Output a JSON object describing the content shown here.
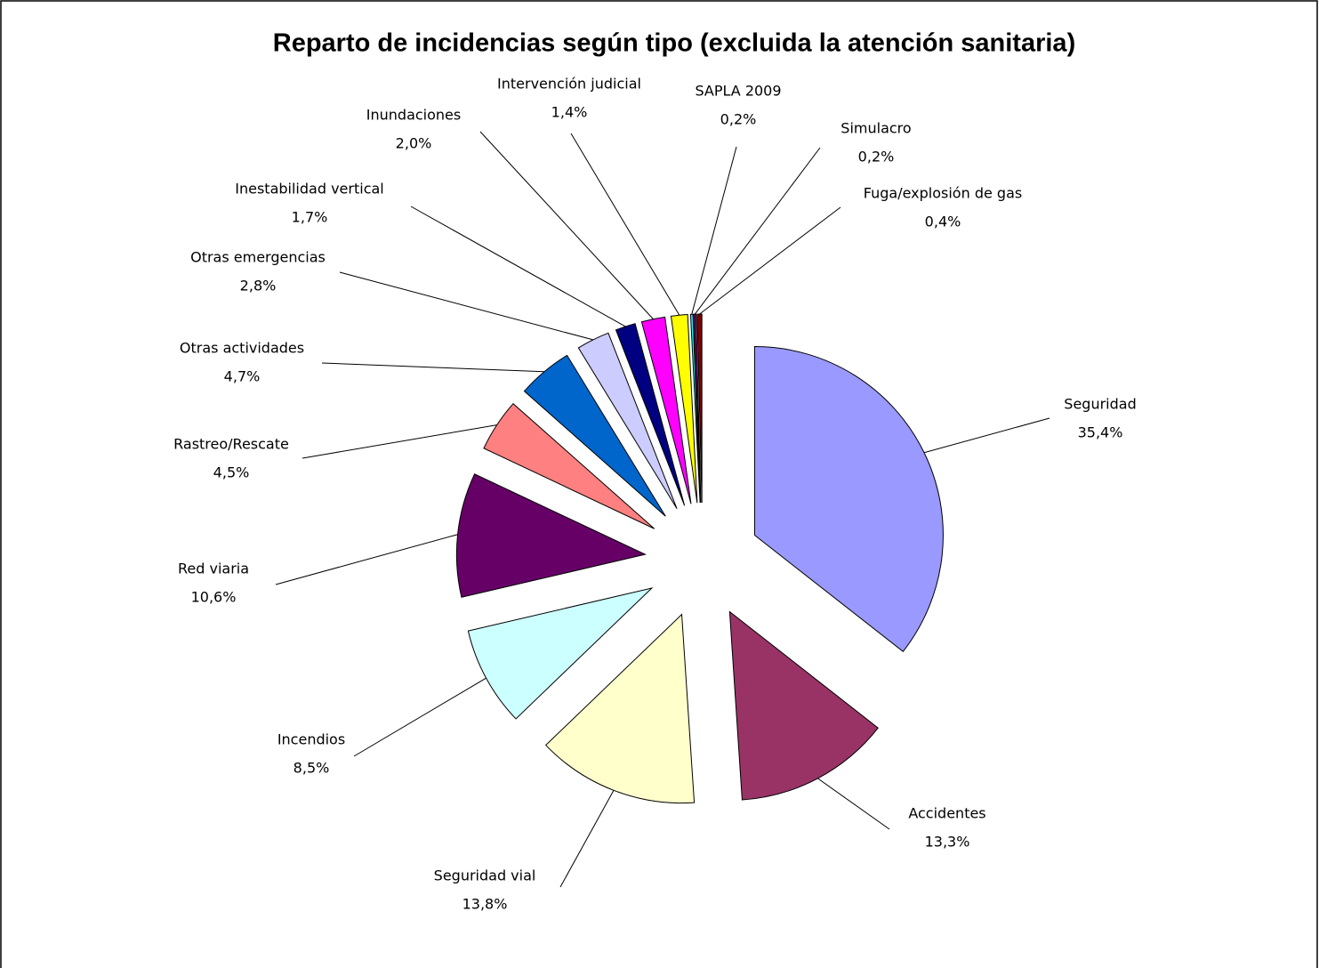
{
  "chart_data": {
    "type": "pie",
    "title": "Reparto de incidencias según tipo (excluida la atención sanitaria)",
    "categories": [
      "Seguridad",
      "Accidentes",
      "Seguridad vial",
      "Incendios",
      "Red viaria",
      "Rastreo/Rescate",
      "Otras actividades",
      "Otras emergencias",
      "Inestabilidad vertical",
      "Inundaciones",
      "Intervención judicial",
      "SAPLA 2009",
      "Simulacro",
      "Fuga/explosión de gas"
    ],
    "values": [
      35.4,
      13.3,
      13.8,
      8.5,
      10.6,
      4.5,
      4.7,
      2.8,
      1.7,
      2.0,
      1.4,
      0.2,
      0.2,
      0.4
    ],
    "value_labels": [
      "35,4%",
      "13,3%",
      "13,8%",
      "8,5%",
      "10,6%",
      "4,5%",
      "4,7%",
      "2,8%",
      "1,7%",
      "2,0%",
      "1,4%",
      "0,2%",
      "0,2%",
      "0,4%"
    ],
    "colors": [
      "#9999ff",
      "#993366",
      "#ffffcc",
      "#ccffff",
      "#660066",
      "#ff8080",
      "#0066cc",
      "#ccccff",
      "#000080",
      "#ff00ff",
      "#ffff00",
      "#00ffff",
      "#800080",
      "#800000"
    ]
  }
}
